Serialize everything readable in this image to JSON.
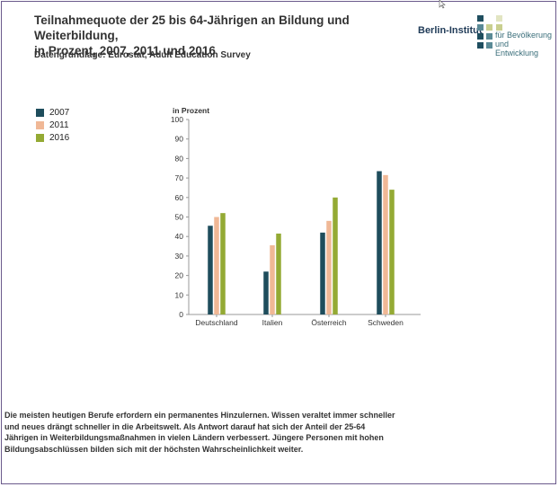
{
  "header": {
    "title_line1": "Teilnahmequote der 25 bis 64-Jährigen an Bildung und Weiterbildung,",
    "title_line2": "in Prozent, 2007, 2011 und 2016",
    "subtitle": "Datengrundlage: Eurostat, Adult Education Survey"
  },
  "logo": {
    "name": "Berlin-Institut",
    "tagline_line1": "für Bevölkerung",
    "tagline_line2": "und Entwicklung",
    "colors": [
      "#1f4e5f",
      "#5a8a96",
      "#c9cf8f",
      "#e2e5c2"
    ]
  },
  "colors": {
    "s2007": "#1e4d5c",
    "s2011": "#f0b896",
    "s2016": "#94aa34"
  },
  "chart_data": {
    "type": "bar",
    "ylabel": "in Prozent",
    "ylim": [
      0,
      100
    ],
    "yticks": [
      0,
      10,
      20,
      30,
      40,
      50,
      60,
      70,
      80,
      90,
      100
    ],
    "grid": false,
    "legend_position": "top-left",
    "categories": [
      "Deutschland",
      "Italien",
      "Österreich",
      "Schweden"
    ],
    "series": [
      {
        "name": "2007",
        "values": [
          45.5,
          22,
          42,
          73.5
        ]
      },
      {
        "name": "2011",
        "values": [
          50,
          35.5,
          48,
          71.5
        ]
      },
      {
        "name": "2016",
        "values": [
          52,
          41.5,
          60,
          64
        ]
      }
    ]
  },
  "paragraph": "Die meisten heutigen Berufe erfordern ein permanentes Hinzulernen. Wissen veraltet immer schneller und neues drängt schneller in die Arbeitswelt. Als Antwort darauf hat sich der Anteil der 25-64 Jährigen in Weiterbildungsmaßnahmen in vielen Ländern verbessert. Jüngere Personen mit hohen Bildungsabschlüssen bilden sich mit der höchsten Wahrscheinlichkeit weiter."
}
